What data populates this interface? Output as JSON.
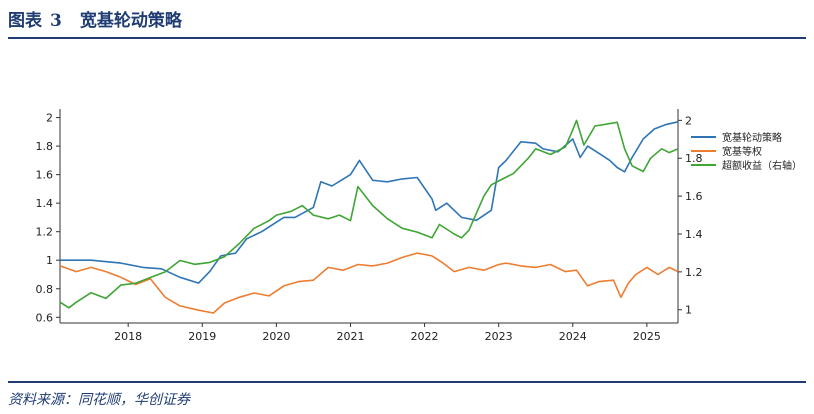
{
  "figure": {
    "label": "图表",
    "number": "3",
    "title": "宽基轮动策略",
    "source": "资料来源：同花顺，华创证券"
  },
  "chart_data": {
    "type": "line",
    "title": "宽基轮动策略",
    "xlabel": "",
    "ylabel": "",
    "x_range": [
      2017.08,
      2025.42
    ],
    "x_ticks": [
      2018,
      2019,
      2020,
      2021,
      2022,
      2023,
      2024,
      2025
    ],
    "x_tick_labels": [
      "2018",
      "2019",
      "2020",
      "2021",
      "2022",
      "2023",
      "2024",
      "2025"
    ],
    "y_left": {
      "range": [
        0.56,
        2.06
      ],
      "ticks": [
        0.6,
        0.8,
        1,
        1.2,
        1.4,
        1.6,
        1.8,
        2
      ],
      "tick_labels": [
        "0.6",
        "0.8",
        "1",
        "1.2",
        "1.4",
        "1.6",
        "1.8",
        "2"
      ]
    },
    "y_right": {
      "range": [
        0.93,
        2.06
      ],
      "ticks": [
        1,
        1.2,
        1.4,
        1.6,
        1.8,
        2
      ],
      "tick_labels": [
        "1",
        "1.2",
        "1.4",
        "1.6",
        "1.8",
        "2"
      ]
    },
    "grid": false,
    "legend_position": "right",
    "series": [
      {
        "name": "宽基轮动策略",
        "axis": "left",
        "color": "#2e75b6",
        "x": [
          2017.08,
          2017.5,
          2017.9,
          2018.2,
          2018.45,
          2018.7,
          2018.95,
          2019.1,
          2019.25,
          2019.45,
          2019.6,
          2019.8,
          2019.95,
          2020.1,
          2020.25,
          2020.5,
          2020.6,
          2020.75,
          2021.0,
          2021.12,
          2021.3,
          2021.5,
          2021.7,
          2021.9,
          2022.1,
          2022.15,
          2022.3,
          2022.5,
          2022.7,
          2022.9,
          2023.0,
          2023.1,
          2023.3,
          2023.5,
          2023.6,
          2023.8,
          2024.0,
          2024.1,
          2024.2,
          2024.35,
          2024.5,
          2024.6,
          2024.7,
          2024.8,
          2024.95,
          2025.1,
          2025.25,
          2025.42
        ],
        "values": [
          1.0,
          1.0,
          0.98,
          0.95,
          0.94,
          0.88,
          0.84,
          0.92,
          1.03,
          1.05,
          1.15,
          1.2,
          1.25,
          1.3,
          1.3,
          1.37,
          1.55,
          1.52,
          1.6,
          1.7,
          1.56,
          1.55,
          1.57,
          1.58,
          1.43,
          1.35,
          1.4,
          1.3,
          1.28,
          1.35,
          1.65,
          1.7,
          1.83,
          1.82,
          1.78,
          1.76,
          1.85,
          1.72,
          1.8,
          1.75,
          1.7,
          1.65,
          1.62,
          1.72,
          1.85,
          1.92,
          1.95,
          1.97
        ]
      },
      {
        "name": "宽基等权",
        "axis": "left",
        "color": "#ed7d31",
        "x": [
          2017.08,
          2017.3,
          2017.5,
          2017.7,
          2017.9,
          2018.1,
          2018.3,
          2018.5,
          2018.7,
          2018.95,
          2019.15,
          2019.3,
          2019.5,
          2019.7,
          2019.9,
          2020.1,
          2020.3,
          2020.5,
          2020.7,
          2020.9,
          2021.1,
          2021.3,
          2021.5,
          2021.7,
          2021.9,
          2022.1,
          2022.25,
          2022.4,
          2022.6,
          2022.8,
          2023.0,
          2023.1,
          2023.3,
          2023.5,
          2023.7,
          2023.9,
          2024.05,
          2024.2,
          2024.35,
          2024.55,
          2024.65,
          2024.75,
          2024.85,
          2025.0,
          2025.15,
          2025.3,
          2025.42
        ],
        "values": [
          0.96,
          0.92,
          0.95,
          0.92,
          0.88,
          0.83,
          0.87,
          0.74,
          0.68,
          0.65,
          0.63,
          0.7,
          0.74,
          0.77,
          0.75,
          0.82,
          0.85,
          0.86,
          0.95,
          0.93,
          0.97,
          0.96,
          0.98,
          1.02,
          1.05,
          1.03,
          0.98,
          0.92,
          0.95,
          0.93,
          0.97,
          0.98,
          0.96,
          0.95,
          0.97,
          0.92,
          0.93,
          0.82,
          0.85,
          0.86,
          0.74,
          0.84,
          0.9,
          0.95,
          0.9,
          0.95,
          0.92
        ]
      },
      {
        "name": "超额收益（右轴）",
        "axis": "right",
        "color": "#3fa535",
        "x": [
          2017.08,
          2017.2,
          2017.3,
          2017.5,
          2017.7,
          2017.9,
          2018.1,
          2018.3,
          2018.5,
          2018.7,
          2018.9,
          2019.1,
          2019.3,
          2019.5,
          2019.7,
          2019.9,
          2020.0,
          2020.2,
          2020.35,
          2020.5,
          2020.7,
          2020.85,
          2021.0,
          2021.1,
          2021.3,
          2021.5,
          2021.7,
          2021.9,
          2022.1,
          2022.2,
          2022.4,
          2022.5,
          2022.6,
          2022.8,
          2022.9,
          2023.0,
          2023.2,
          2023.4,
          2023.5,
          2023.7,
          2023.9,
          2024.0,
          2024.05,
          2024.15,
          2024.3,
          2024.45,
          2024.6,
          2024.7,
          2024.8,
          2024.95,
          2025.05,
          2025.2,
          2025.3,
          2025.42
        ],
        "values": [
          1.04,
          1.01,
          1.04,
          1.09,
          1.06,
          1.13,
          1.14,
          1.17,
          1.2,
          1.26,
          1.24,
          1.25,
          1.28,
          1.35,
          1.43,
          1.47,
          1.5,
          1.52,
          1.55,
          1.5,
          1.48,
          1.5,
          1.47,
          1.65,
          1.55,
          1.48,
          1.43,
          1.41,
          1.38,
          1.45,
          1.4,
          1.38,
          1.42,
          1.6,
          1.66,
          1.68,
          1.72,
          1.8,
          1.85,
          1.82,
          1.86,
          1.95,
          2.0,
          1.87,
          1.97,
          1.98,
          1.99,
          1.85,
          1.76,
          1.73,
          1.8,
          1.85,
          1.83,
          1.85
        ]
      }
    ]
  }
}
